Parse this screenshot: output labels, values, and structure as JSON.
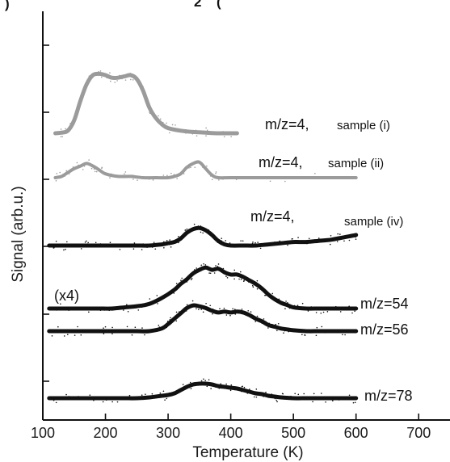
{
  "chart_data": {
    "type": "line",
    "title": "",
    "xlabel": "Temperature (K)",
    "ylabel": "Signal (arb.u.)",
    "xlim": [
      100,
      750
    ],
    "xticks": [
      100,
      200,
      300,
      400,
      500,
      600,
      700
    ],
    "yticks_labeled": false,
    "legend": "none",
    "grid": false,
    "colors": {
      "gray": "#9b9b9b",
      "black": "#111111"
    },
    "series": [
      {
        "name": "m/z=4, sample (i)",
        "color": "#9b9b9b",
        "points": [
          [
            120,
            0
          ],
          [
            130,
            0.5
          ],
          [
            140,
            2
          ],
          [
            150,
            10
          ],
          [
            160,
            25
          ],
          [
            170,
            38
          ],
          [
            180,
            45
          ],
          [
            190,
            46
          ],
          [
            200,
            45
          ],
          [
            210,
            43
          ],
          [
            220,
            43
          ],
          [
            230,
            44
          ],
          [
            240,
            45
          ],
          [
            250,
            42
          ],
          [
            260,
            33
          ],
          [
            270,
            20
          ],
          [
            280,
            12
          ],
          [
            290,
            7
          ],
          [
            300,
            4
          ],
          [
            320,
            2
          ],
          [
            340,
            1
          ],
          [
            360,
            0.5
          ],
          [
            380,
            0
          ],
          [
            400,
            0
          ],
          [
            410,
            0
          ]
        ]
      },
      {
        "name": "m/z=4, sample (ii)",
        "color": "#9b9b9b",
        "points": [
          [
            120,
            0
          ],
          [
            130,
            1
          ],
          [
            140,
            4
          ],
          [
            150,
            7
          ],
          [
            160,
            9
          ],
          [
            170,
            11
          ],
          [
            180,
            9
          ],
          [
            190,
            6
          ],
          [
            200,
            3
          ],
          [
            220,
            1
          ],
          [
            240,
            1
          ],
          [
            260,
            0
          ],
          [
            280,
            0
          ],
          [
            300,
            0
          ],
          [
            310,
            1
          ],
          [
            320,
            3
          ],
          [
            330,
            8
          ],
          [
            340,
            11
          ],
          [
            350,
            12
          ],
          [
            360,
            7
          ],
          [
            370,
            2
          ],
          [
            380,
            0
          ],
          [
            400,
            0
          ],
          [
            450,
            0
          ],
          [
            500,
            0
          ],
          [
            550,
            0
          ],
          [
            600,
            0
          ]
        ]
      },
      {
        "name": "m/z=4, sample (iv)",
        "color": "#111111",
        "points": [
          [
            110,
            0
          ],
          [
            130,
            0
          ],
          [
            150,
            0
          ],
          [
            170,
            0
          ],
          [
            190,
            0
          ],
          [
            210,
            0
          ],
          [
            230,
            0
          ],
          [
            250,
            0
          ],
          [
            270,
            0
          ],
          [
            290,
            1
          ],
          [
            300,
            2
          ],
          [
            310,
            3
          ],
          [
            320,
            6
          ],
          [
            330,
            11
          ],
          [
            340,
            14
          ],
          [
            350,
            15
          ],
          [
            360,
            13
          ],
          [
            370,
            9
          ],
          [
            380,
            4
          ],
          [
            390,
            1
          ],
          [
            400,
            0
          ],
          [
            420,
            0
          ],
          [
            440,
            0
          ],
          [
            460,
            1
          ],
          [
            480,
            2
          ],
          [
            500,
            3
          ],
          [
            520,
            3
          ],
          [
            540,
            4
          ],
          [
            560,
            5
          ],
          [
            580,
            7
          ],
          [
            590,
            8
          ],
          [
            600,
            9
          ]
        ]
      },
      {
        "name": "m/z=54",
        "color": "#111111",
        "scale_label": "(x4)",
        "points": [
          [
            110,
            0
          ],
          [
            130,
            0
          ],
          [
            150,
            0
          ],
          [
            170,
            0
          ],
          [
            190,
            0
          ],
          [
            210,
            0
          ],
          [
            230,
            1
          ],
          [
            250,
            2
          ],
          [
            270,
            4
          ],
          [
            290,
            9
          ],
          [
            310,
            16
          ],
          [
            320,
            21
          ],
          [
            330,
            25
          ],
          [
            340,
            30
          ],
          [
            350,
            33
          ],
          [
            360,
            35
          ],
          [
            370,
            33
          ],
          [
            380,
            34
          ],
          [
            390,
            31
          ],
          [
            400,
            29
          ],
          [
            410,
            29
          ],
          [
            420,
            27
          ],
          [
            430,
            24
          ],
          [
            440,
            21
          ],
          [
            450,
            17
          ],
          [
            460,
            12
          ],
          [
            470,
            8
          ],
          [
            480,
            5
          ],
          [
            490,
            3
          ],
          [
            500,
            1
          ],
          [
            520,
            0
          ],
          [
            540,
            0
          ],
          [
            560,
            0
          ],
          [
            580,
            0
          ],
          [
            600,
            0
          ]
        ]
      },
      {
        "name": "m/z=56",
        "color": "#111111",
        "points": [
          [
            110,
            0
          ],
          [
            130,
            0
          ],
          [
            150,
            0
          ],
          [
            170,
            0
          ],
          [
            190,
            0
          ],
          [
            210,
            0
          ],
          [
            230,
            0
          ],
          [
            250,
            0
          ],
          [
            270,
            0
          ],
          [
            290,
            3
          ],
          [
            300,
            8
          ],
          [
            310,
            14
          ],
          [
            320,
            20
          ],
          [
            330,
            26
          ],
          [
            340,
            29
          ],
          [
            350,
            28
          ],
          [
            360,
            26
          ],
          [
            370,
            23
          ],
          [
            380,
            21
          ],
          [
            390,
            22
          ],
          [
            400,
            21
          ],
          [
            410,
            22
          ],
          [
            420,
            21
          ],
          [
            430,
            18
          ],
          [
            440,
            14
          ],
          [
            450,
            11
          ],
          [
            460,
            7
          ],
          [
            470,
            5
          ],
          [
            480,
            3
          ],
          [
            490,
            2
          ],
          [
            500,
            1
          ],
          [
            520,
            0
          ],
          [
            540,
            0
          ],
          [
            560,
            0
          ],
          [
            580,
            0
          ],
          [
            600,
            0
          ]
        ]
      },
      {
        "name": "m/z=78",
        "color": "#111111",
        "points": [
          [
            110,
            0
          ],
          [
            130,
            0
          ],
          [
            150,
            0
          ],
          [
            170,
            0
          ],
          [
            190,
            0
          ],
          [
            210,
            0
          ],
          [
            230,
            0
          ],
          [
            250,
            0
          ],
          [
            270,
            1
          ],
          [
            290,
            3
          ],
          [
            300,
            4
          ],
          [
            310,
            6
          ],
          [
            320,
            10
          ],
          [
            330,
            14
          ],
          [
            340,
            17
          ],
          [
            350,
            18
          ],
          [
            360,
            18
          ],
          [
            370,
            17
          ],
          [
            380,
            15
          ],
          [
            390,
            14
          ],
          [
            400,
            13
          ],
          [
            410,
            12
          ],
          [
            420,
            10
          ],
          [
            430,
            8
          ],
          [
            440,
            6
          ],
          [
            450,
            5
          ],
          [
            460,
            3
          ],
          [
            470,
            2
          ],
          [
            480,
            1
          ],
          [
            500,
            0
          ],
          [
            520,
            0
          ],
          [
            540,
            0
          ],
          [
            560,
            0
          ],
          [
            580,
            0
          ],
          [
            600,
            0
          ]
        ]
      }
    ]
  },
  "labels": {
    "top_title_fragment": ") (",
    "top_subscript": "2",
    "mz4_i_label": "m/z=4,",
    "mz4_i_sample": "sample (i)",
    "mz4_ii_label": "m/z=4,",
    "mz4_ii_sample": "sample (ii)",
    "mz4_iv_label": "m/z=4,",
    "mz4_iv_sample": "sample (iv)",
    "mz54_label": "m/z=54",
    "mz56_label": "m/z=56",
    "mz78_label": "m/z=78",
    "scale_label": "(x4)"
  }
}
